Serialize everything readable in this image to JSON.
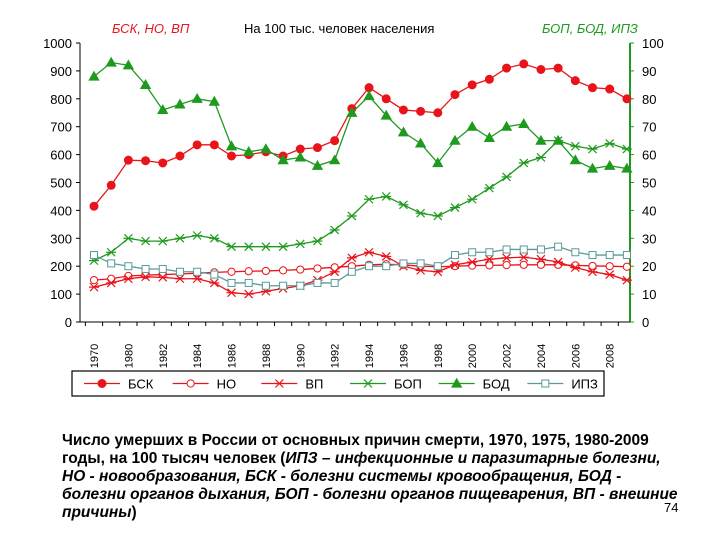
{
  "chart_data": {
    "type": "line",
    "title": "На 100 тыс. человек населения",
    "left_axis_label": "БСК, НО, ВП",
    "right_axis_label": "БОП, БОД, ИПЗ",
    "left_ylim": [
      0,
      1000
    ],
    "right_ylim": [
      0,
      100
    ],
    "left_ticks": [
      "0",
      "100",
      "200",
      "300",
      "400",
      "500",
      "600",
      "700",
      "800",
      "900",
      "1000"
    ],
    "right_ticks": [
      "0",
      "10",
      "20",
      "30",
      "40",
      "50",
      "60",
      "70",
      "80",
      "90",
      "100"
    ],
    "x_ticks": [
      "1970",
      "1980",
      "1982",
      "1984",
      "1986",
      "1988",
      "1990",
      "1992",
      "1994",
      "1996",
      "1998",
      "2000",
      "2002",
      "2004",
      "2006",
      "2008"
    ],
    "x": [
      "1970",
      "1975",
      "1980",
      "1981",
      "1982",
      "1983",
      "1984",
      "1985",
      "1986",
      "1987",
      "1988",
      "1989",
      "1990",
      "1991",
      "1992",
      "1993",
      "1994",
      "1995",
      "1996",
      "1997",
      "1998",
      "1999",
      "2000",
      "2001",
      "2002",
      "2003",
      "2004",
      "2005",
      "2006",
      "2007",
      "2008",
      "2009"
    ],
    "grid": false,
    "legend_position": "bottom",
    "series": [
      {
        "name": "БСК",
        "axis": "left",
        "color": "#e8141a",
        "marker": "circle-filled",
        "values": [
          415,
          490,
          580,
          578,
          570,
          595,
          635,
          635,
          595,
          600,
          610,
          595,
          620,
          625,
          650,
          765,
          840,
          800,
          760,
          755,
          750,
          815,
          850,
          870,
          910,
          925,
          905,
          910,
          865,
          840,
          835,
          800
        ]
      },
      {
        "name": "НО",
        "axis": "left",
        "color": "#e8141a",
        "marker": "circle-open",
        "values": [
          150,
          155,
          165,
          168,
          170,
          172,
          175,
          178,
          180,
          182,
          183,
          185,
          188,
          192,
          196,
          200,
          205,
          207,
          205,
          200,
          198,
          200,
          202,
          203,
          204,
          205,
          205,
          205,
          203,
          201,
          200,
          198
        ]
      },
      {
        "name": "ВП",
        "axis": "left",
        "color": "#e8141a",
        "marker": "asterisk",
        "values": [
          125,
          140,
          155,
          162,
          160,
          155,
          155,
          140,
          105,
          100,
          110,
          120,
          130,
          150,
          180,
          230,
          250,
          235,
          200,
          185,
          180,
          205,
          215,
          225,
          230,
          232,
          225,
          215,
          195,
          180,
          170,
          150
        ]
      },
      {
        "name": "БОП",
        "axis": "right",
        "color": "#1e9a1e",
        "marker": "asterisk",
        "values": [
          22,
          25,
          30,
          29,
          29,
          30,
          31,
          30,
          27,
          27,
          27,
          27,
          28,
          29,
          33,
          38,
          44,
          45,
          42,
          39,
          38,
          41,
          44,
          48,
          52,
          57,
          59,
          65,
          63,
          62,
          64,
          62
        ]
      },
      {
        "name": "БОД",
        "axis": "right",
        "color": "#1e9a1e",
        "marker": "triangle-filled",
        "values": [
          88,
          93,
          92,
          85,
          76,
          78,
          80,
          79,
          63,
          61,
          62,
          58,
          59,
          56,
          58,
          75,
          81,
          74,
          68,
          64,
          57,
          65,
          70,
          66,
          70,
          71,
          65,
          65,
          58,
          55,
          56,
          55
        ]
      },
      {
        "name": "ИПЗ",
        "axis": "right",
        "color": "#5a9a9a",
        "marker": "square-open",
        "values": [
          24,
          21,
          20,
          19,
          19,
          18,
          18,
          17,
          14,
          14,
          13,
          13,
          13,
          14,
          14,
          18,
          20,
          20,
          21,
          21,
          20,
          24,
          25,
          25,
          26,
          26,
          26,
          27,
          25,
          24,
          24,
          24
        ]
      }
    ]
  },
  "caption": {
    "part1": "Число умерших в России от основных причин смерти, 1970, 1975, 1980-2009 годы, на 100 тысяч человек (",
    "part2": "ИПЗ – инфекционные и паразитарные болезни, НО - новообразования, БСК - болезни системы кровообращения, БОД - болезни органов дыхания, БОП - болезни органов пищеварения, ВП - внешние причины",
    "part3": ")"
  },
  "page_number": "74",
  "colors": {
    "left_axis_label": "#e8141a",
    "right_axis": "#1e9a1e",
    "axis_line": "#000000"
  }
}
